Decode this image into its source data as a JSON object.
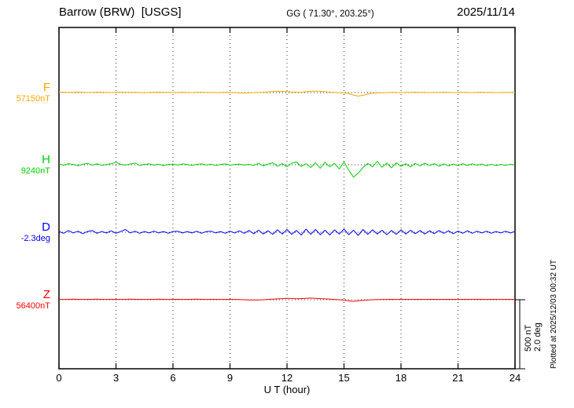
{
  "header": {
    "station": "Barrow (BRW)  [USGS]",
    "gg": "GG ( 71.30°, 203.25°)",
    "date": "2025/11/14"
  },
  "annotations": {
    "scale_nt": "500 nT",
    "scale_deg": "2.0 deg",
    "plotted_at": "Plotted at 2025/12/03 00:32 UT"
  },
  "chart_data": {
    "type": "line",
    "title": "Barrow (BRW) [USGS] magnetogram 2025/11/14",
    "xlabel": "U T (hour)",
    "x_range": [
      0,
      24
    ],
    "x_ticks": [
      0,
      3,
      6,
      9,
      12,
      15,
      18,
      21,
      24
    ],
    "grid": "vertical-dotted",
    "scale_bar": {
      "nT": 500,
      "deg": 2.0
    },
    "series": [
      {
        "name": "F",
        "color": "#ffa500",
        "units": "nT",
        "baseline_value": 57150,
        "baseline_label": "57150nT",
        "offsets": [
          2,
          3,
          1,
          2,
          4,
          2,
          0,
          1,
          3,
          2,
          1,
          0,
          2,
          3,
          2,
          1,
          2,
          0,
          -1,
          1,
          2,
          3,
          2,
          1,
          0,
          1,
          2,
          1,
          0,
          1,
          2,
          1,
          1,
          0,
          1,
          2,
          1,
          0,
          -2,
          -3,
          -2,
          0,
          1,
          2,
          5,
          8,
          10,
          9,
          6,
          4,
          3,
          2,
          6,
          9,
          11,
          9,
          6,
          3,
          1,
          0,
          -2,
          -8,
          -18,
          -25,
          -20,
          -10,
          -4,
          -2,
          -1,
          0,
          1,
          1,
          0,
          1,
          1,
          2,
          1,
          1,
          0,
          1,
          1,
          2,
          1,
          0,
          1,
          1,
          1,
          0,
          1,
          2,
          1,
          1,
          0,
          1,
          1,
          1,
          1
        ]
      },
      {
        "name": "H",
        "color": "#00d000",
        "units": "nT",
        "baseline_value": 9240,
        "baseline_label": "9240nT",
        "offsets": [
          5,
          -3,
          8,
          2,
          -6,
          4,
          10,
          -2,
          6,
          -4,
          2,
          8,
          18,
          3,
          -2,
          5,
          12,
          -4,
          3,
          6,
          -2,
          4,
          -6,
          2,
          5,
          -3,
          6,
          2,
          -4,
          3,
          6,
          -2,
          4,
          -5,
          2,
          6,
          -3,
          2,
          4,
          -2,
          3,
          -4,
          10,
          -8,
          5,
          15,
          -10,
          8,
          -15,
          12,
          20,
          -12,
          8,
          -20,
          15,
          -25,
          18,
          -15,
          10,
          -30,
          20,
          -40,
          -90,
          -60,
          -20,
          10,
          -15,
          25,
          -18,
          12,
          -22,
          15,
          -12,
          8,
          -15,
          10,
          -8,
          12,
          -6,
          8,
          -10,
          6,
          -8,
          5,
          -6,
          8,
          -5,
          6,
          -4,
          5,
          -6,
          4,
          -5,
          3,
          -4,
          4,
          -3
        ]
      },
      {
        "name": "D",
        "color": "#0000ff",
        "units": "deg",
        "baseline_value": -2.3,
        "baseline_label": "-2.3deg",
        "offsets": [
          0.02,
          -0.03,
          0.05,
          -0.02,
          0.03,
          -0.04,
          0.02,
          0.05,
          -0.03,
          0.02,
          -0.02,
          0.04,
          -0.03,
          0.02,
          0.08,
          -0.02,
          0.03,
          -0.03,
          0.02,
          -0.02,
          0.03,
          -0.02,
          0.02,
          -0.03,
          0.02,
          0.03,
          -0.02,
          0.02,
          -0.02,
          0.03,
          -0.03,
          0.02,
          0.03,
          -0.02,
          0.02,
          -0.03,
          0.03,
          -0.02,
          0.04,
          -0.03,
          0.05,
          -0.04,
          0.06,
          -0.05,
          0.04,
          -0.06,
          0.07,
          -0.05,
          0.08,
          -0.06,
          0.05,
          -0.08,
          0.09,
          -0.06,
          0.08,
          -0.07,
          0.06,
          -0.08,
          0.07,
          -0.05,
          0.09,
          -0.07,
          0.06,
          -0.09,
          0.08,
          -0.06,
          0.07,
          -0.05,
          0.06,
          -0.07,
          0.05,
          -0.06,
          0.07,
          -0.05,
          0.06,
          -0.04,
          0.05,
          -0.05,
          0.04,
          -0.04,
          0.05,
          -0.03,
          0.04,
          -0.04,
          0.03,
          -0.03,
          0.04,
          -0.03,
          0.03,
          -0.02,
          0.03,
          -0.03,
          0.02,
          -0.02,
          0.03,
          -0.02,
          0.02
        ]
      },
      {
        "name": "Z",
        "color": "#ff0000",
        "units": "nT",
        "baseline_value": 56400,
        "baseline_label": "56400nT",
        "offsets": [
          3,
          2,
          3,
          4,
          3,
          2,
          3,
          3,
          4,
          3,
          2,
          3,
          3,
          2,
          3,
          4,
          3,
          3,
          2,
          3,
          3,
          4,
          3,
          2,
          3,
          3,
          2,
          3,
          3,
          4,
          3,
          2,
          3,
          3,
          2,
          3,
          3,
          2,
          1,
          0,
          -1,
          -2,
          -1,
          0,
          2,
          4,
          6,
          8,
          10,
          9,
          7,
          8,
          10,
          12,
          10,
          8,
          6,
          4,
          2,
          0,
          -3,
          -8,
          -12,
          -8,
          -4,
          -2,
          0,
          1,
          2,
          2,
          3,
          2,
          3,
          3,
          2,
          3,
          3,
          2,
          3,
          3,
          2,
          3,
          3,
          3,
          2,
          3,
          3,
          2,
          3,
          3,
          2,
          3,
          3,
          2,
          3,
          3,
          2
        ]
      }
    ]
  }
}
